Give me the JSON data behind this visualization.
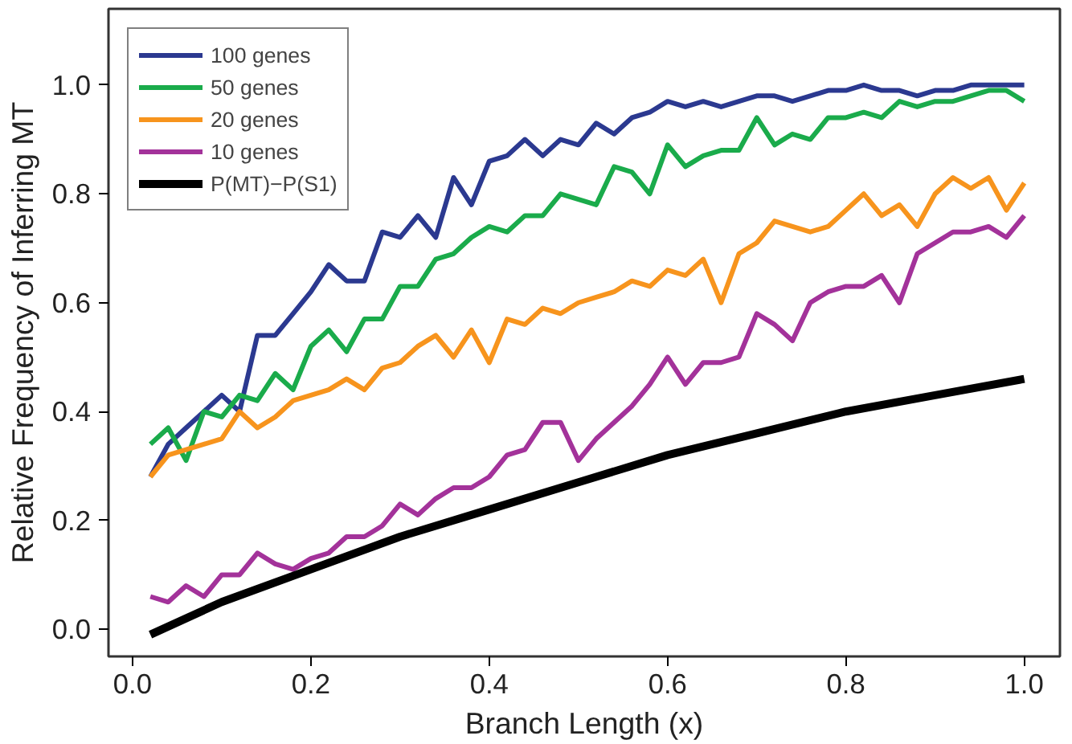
{
  "chart_data": {
    "type": "line",
    "xlabel": "Branch Length (x)",
    "ylabel": "Relative Frequency of Inferring MT",
    "x": [
      0.02,
      0.04,
      0.06,
      0.08,
      0.1,
      0.12,
      0.14,
      0.16,
      0.18,
      0.2,
      0.22,
      0.24,
      0.26,
      0.28,
      0.3,
      0.32,
      0.34,
      0.36,
      0.38,
      0.4,
      0.42,
      0.44,
      0.46,
      0.48,
      0.5,
      0.52,
      0.54,
      0.56,
      0.58,
      0.6,
      0.62,
      0.64,
      0.66,
      0.68,
      0.7,
      0.72,
      0.74,
      0.76,
      0.78,
      0.8,
      0.82,
      0.84,
      0.86,
      0.88,
      0.9,
      0.92,
      0.94,
      0.96,
      0.98,
      1.0
    ],
    "series": [
      {
        "name": "100 genes",
        "color": "#2b3990",
        "values": [
          0.28,
          0.34,
          0.37,
          0.4,
          0.43,
          0.4,
          0.54,
          0.54,
          0.58,
          0.62,
          0.67,
          0.64,
          0.64,
          0.73,
          0.72,
          0.76,
          0.72,
          0.83,
          0.78,
          0.86,
          0.87,
          0.9,
          0.87,
          0.9,
          0.89,
          0.93,
          0.91,
          0.94,
          0.95,
          0.97,
          0.96,
          0.97,
          0.96,
          0.97,
          0.98,
          0.98,
          0.97,
          0.98,
          0.99,
          0.99,
          1.0,
          0.99,
          0.99,
          0.98,
          0.99,
          0.99,
          1.0,
          1.0,
          1.0,
          1.0
        ]
      },
      {
        "name": "50 genes",
        "color": "#1aab4b",
        "values": [
          0.34,
          0.37,
          0.31,
          0.4,
          0.39,
          0.43,
          0.42,
          0.47,
          0.44,
          0.52,
          0.55,
          0.51,
          0.57,
          0.57,
          0.63,
          0.63,
          0.68,
          0.69,
          0.72,
          0.74,
          0.73,
          0.76,
          0.76,
          0.8,
          0.79,
          0.78,
          0.85,
          0.84,
          0.8,
          0.89,
          0.85,
          0.87,
          0.88,
          0.88,
          0.94,
          0.89,
          0.91,
          0.9,
          0.94,
          0.94,
          0.95,
          0.94,
          0.97,
          0.96,
          0.97,
          0.97,
          0.98,
          0.99,
          0.99,
          0.97
        ]
      },
      {
        "name": "20 genes",
        "color": "#f7941d",
        "values": [
          0.28,
          0.32,
          0.33,
          0.34,
          0.35,
          0.4,
          0.37,
          0.39,
          0.42,
          0.43,
          0.44,
          0.46,
          0.44,
          0.48,
          0.49,
          0.52,
          0.54,
          0.5,
          0.55,
          0.49,
          0.57,
          0.56,
          0.59,
          0.58,
          0.6,
          0.61,
          0.62,
          0.64,
          0.63,
          0.66,
          0.65,
          0.68,
          0.6,
          0.69,
          0.71,
          0.75,
          0.74,
          0.73,
          0.74,
          0.77,
          0.8,
          0.76,
          0.78,
          0.74,
          0.8,
          0.83,
          0.81,
          0.83,
          0.77,
          0.82
        ]
      },
      {
        "name": "10 genes",
        "color": "#a3329a",
        "values": [
          0.06,
          0.05,
          0.08,
          0.06,
          0.1,
          0.1,
          0.14,
          0.12,
          0.11,
          0.13,
          0.14,
          0.17,
          0.17,
          0.19,
          0.23,
          0.21,
          0.24,
          0.26,
          0.26,
          0.28,
          0.32,
          0.33,
          0.38,
          0.38,
          0.31,
          0.35,
          0.38,
          0.41,
          0.45,
          0.5,
          0.45,
          0.49,
          0.49,
          0.5,
          0.58,
          0.56,
          0.53,
          0.6,
          0.62,
          0.63,
          0.63,
          0.65,
          0.6,
          0.69,
          0.71,
          0.73,
          0.73,
          0.74,
          0.72,
          0.76
        ]
      },
      {
        "name": "P(MT)−P(S1)",
        "color": "#000000",
        "x": [
          0.02,
          0.1,
          0.2,
          0.3,
          0.4,
          0.5,
          0.6,
          0.7,
          0.8,
          0.9,
          1.0
        ],
        "values": [
          -0.01,
          0.05,
          0.11,
          0.17,
          0.22,
          0.27,
          0.32,
          0.36,
          0.4,
          0.43,
          0.46
        ]
      }
    ],
    "xlim": [
      -0.027,
      1.04
    ],
    "ylim": [
      -0.05,
      1.14
    ],
    "xticks": [
      {
        "value": 0,
        "label": "0.0"
      },
      0.2,
      0.4,
      0.6,
      0.8,
      {
        "value": 1,
        "label": "1.0"
      }
    ],
    "yticks": [
      {
        "value": 0,
        "label": "0.0"
      },
      0.2,
      0.4,
      0.6,
      0.8,
      {
        "value": 1,
        "label": "1.0"
      }
    ],
    "grid": false,
    "legend": "top left",
    "marker": "none",
    "line_style": "solid"
  }
}
